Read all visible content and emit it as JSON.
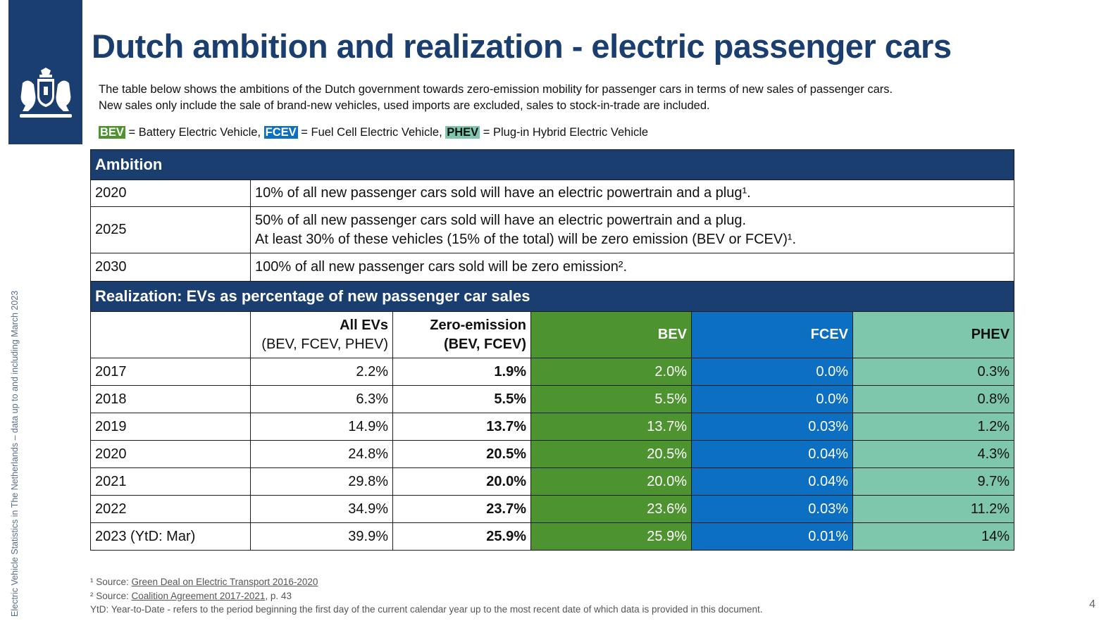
{
  "page": {
    "title": "Dutch ambition and realization - electric passenger cars",
    "intro_line1": "The table below shows the ambitions of the Dutch government towards zero-emission mobility for passenger cars in terms of new sales of passenger cars.",
    "intro_line2": "New sales only include the sale of brand-new vehicles, used imports are excluded, sales to stock-in-trade are included.",
    "side_text": "Electric Vehicle Statistics in The Netherlands – data up to and including March 2023",
    "page_number": "4"
  },
  "legend": {
    "bev_tag": "BEV",
    "bev_text": " = Battery Electric Vehicle,",
    "fcev_tag": "FCEV",
    "fcev_text": " = Fuel Cell Electric Vehicle,",
    "phev_tag": "PHEV",
    "phev_text": " = Plug-in Hybrid Electric Vehicle"
  },
  "ambition": {
    "header": "Ambition",
    "rows": [
      {
        "year": "2020",
        "line1": "10% of all new passenger cars sold will have an electric powertrain and a plug¹.",
        "line2": ""
      },
      {
        "year": "2025",
        "line1": "50% of all new passenger cars sold will have an electric powertrain and a plug.",
        "line2": "At least 30% of these vehicles (15% of the total) will be zero emission (BEV or FCEV)¹."
      },
      {
        "year": "2030",
        "line1": "100% of all new passenger cars sold will be zero emission².",
        "line2": ""
      }
    ]
  },
  "realization": {
    "header": "Realization: EVs as percentage of new passenger car sales",
    "columns": {
      "all_evs_title": "All EVs",
      "all_evs_sub": "(BEV, FCEV, PHEV)",
      "zero_title": "Zero-emission",
      "zero_sub": "(BEV, FCEV)",
      "bev": "BEV",
      "fcev": "FCEV",
      "phev": "PHEV"
    },
    "rows": [
      {
        "year": "2017",
        "all": "2.2%",
        "zero": "1.9%",
        "bev": "2.0%",
        "fcev": "0.0%",
        "phev": "0.3%"
      },
      {
        "year": "2018",
        "all": "6.3%",
        "zero": "5.5%",
        "bev": "5.5%",
        "fcev": "0.0%",
        "phev": "0.8%"
      },
      {
        "year": "2019",
        "all": "14.9%",
        "zero": "13.7%",
        "bev": "13.7%",
        "fcev": "0.03%",
        "phev": "1.2%"
      },
      {
        "year": "2020",
        "all": "24.8%",
        "zero": "20.5%",
        "bev": "20.5%",
        "fcev": "0.04%",
        "phev": "4.3%"
      },
      {
        "year": "2021",
        "all": "29.8%",
        "zero": "20.0%",
        "bev": "20.0%",
        "fcev": "0.04%",
        "phev": "9.7%"
      },
      {
        "year": "2022",
        "all": "34.9%",
        "zero": "23.7%",
        "bev": "23.6%",
        "fcev": "0.03%",
        "phev": "11.2%"
      },
      {
        "year": "2023 (YtD: Mar)",
        "all": "39.9%",
        "zero": "25.9%",
        "bev": "25.9%",
        "fcev": "0.01%",
        "phev": "14%"
      }
    ]
  },
  "footnotes": {
    "f1_prefix": "¹ Source: ",
    "f1_link": "Green Deal on Electric Transport 2016-2020",
    "f2_prefix": "² Source: ",
    "f2_link": "Coalition Agreement 2017-2021",
    "f2_suffix": ", p. 43",
    "f3": "YtD: Year-to-Date - refers to the period beginning the first day of the current calendar year up to the most recent date of which data is provided in this document."
  },
  "colors": {
    "navy": "#1a3e6f",
    "bev": "#4d9330",
    "fcev": "#0c6fc1",
    "phev": "#7ec7ac"
  }
}
